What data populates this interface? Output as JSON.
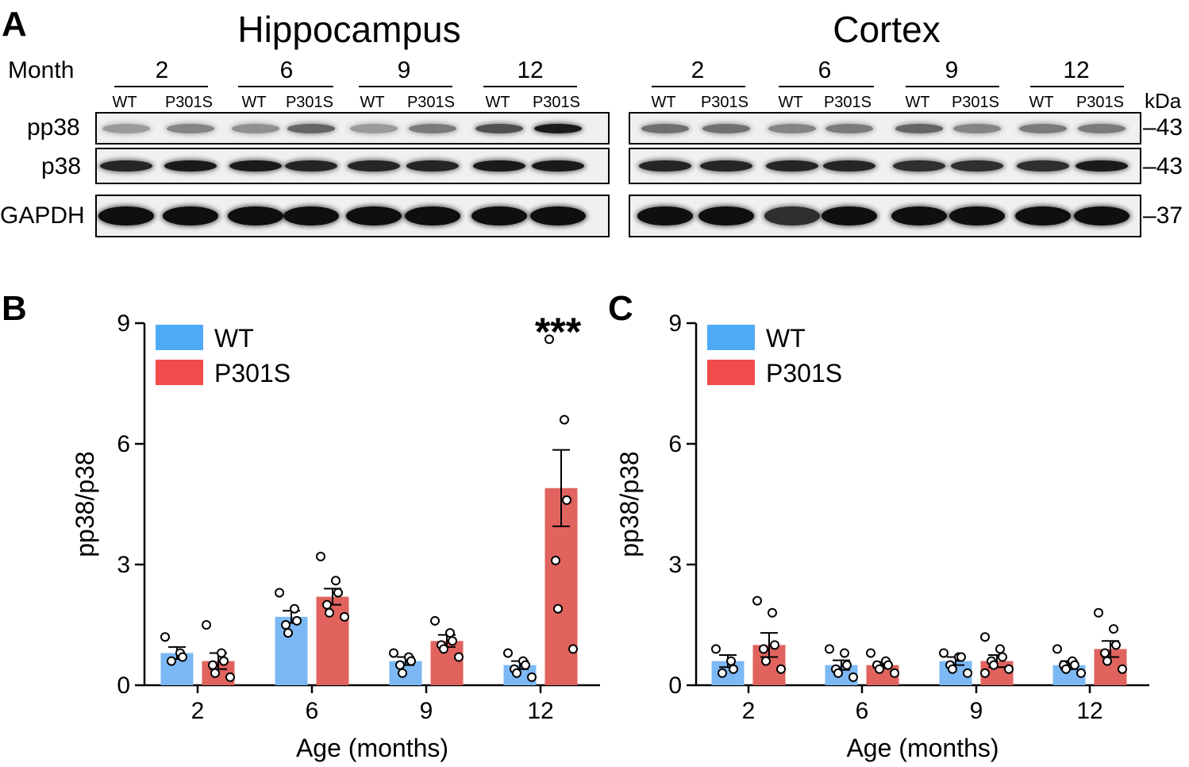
{
  "panel_a": {
    "letter": "A",
    "month_label": "Month",
    "kda_label": "kDa",
    "regions": [
      {
        "title": "Hippocampus",
        "months": [
          "2",
          "6",
          "9",
          "12"
        ]
      },
      {
        "title": "Cortex",
        "months": [
          "2",
          "6",
          "9",
          "12"
        ]
      }
    ],
    "lane_labels": [
      "WT",
      "P301S"
    ],
    "rows": [
      {
        "label": "pp38",
        "kda": "43"
      },
      {
        "label": "p38",
        "kda": "43"
      },
      {
        "label": "GAPDH",
        "kda": "37"
      }
    ]
  },
  "panel_b": {
    "letter": "B"
  },
  "panel_c": {
    "letter": "C"
  },
  "chart_data": [
    {
      "type": "bar",
      "panel": "B",
      "title": "",
      "xlabel": "Age (months)",
      "ylabel": "pp38/p38",
      "ylim": [
        0,
        9
      ],
      "yticks": [
        0,
        3,
        6,
        9
      ],
      "categories": [
        "2",
        "6",
        "9",
        "12"
      ],
      "legend": {
        "position": "top-left",
        "entries": [
          "WT",
          "P301S"
        ]
      },
      "annotation": {
        "text": "***",
        "category": "12"
      },
      "series": [
        {
          "name": "WT",
          "color": "#7cb8f4",
          "legend_color": "#4faaf6",
          "values": [
            0.8,
            1.7,
            0.6,
            0.5
          ],
          "sem": [
            0.15,
            0.15,
            0.1,
            0.1
          ],
          "points": [
            [
              1.2,
              0.8,
              0.7,
              0.6
            ],
            [
              2.3,
              1.9,
              1.6,
              1.5,
              1.3
            ],
            [
              0.8,
              0.7,
              0.6,
              0.5,
              0.3
            ],
            [
              0.8,
              0.6,
              0.5,
              0.4,
              0.3,
              0.2
            ]
          ]
        },
        {
          "name": "P301S",
          "color": "#e0635e",
          "legend_color": "#f24b4b",
          "values": [
            0.6,
            2.2,
            1.1,
            4.9
          ],
          "sem": [
            0.2,
            0.2,
            0.15,
            0.95
          ],
          "points": [
            [
              1.5,
              0.8,
              0.6,
              0.5,
              0.3,
              0.2
            ],
            [
              3.2,
              2.6,
              2.3,
              2.0,
              1.8,
              1.7
            ],
            [
              1.6,
              1.3,
              1.1,
              1.0,
              0.9,
              0.7
            ],
            [
              8.6,
              6.6,
              4.6,
              3.1,
              1.9,
              0.9
            ]
          ]
        }
      ]
    },
    {
      "type": "bar",
      "panel": "C",
      "title": "",
      "xlabel": "Age (months)",
      "ylabel": "pp38/p38",
      "ylim": [
        0,
        9
      ],
      "yticks": [
        0,
        3,
        6,
        9
      ],
      "categories": [
        "2",
        "6",
        "9",
        "12"
      ],
      "legend": {
        "position": "top-left",
        "entries": [
          "WT",
          "P301S"
        ]
      },
      "series": [
        {
          "name": "WT",
          "color": "#7cb8f4",
          "legend_color": "#4faaf6",
          "values": [
            0.6,
            0.5,
            0.6,
            0.5
          ],
          "sem": [
            0.15,
            0.12,
            0.1,
            0.1
          ],
          "points": [
            [
              0.9,
              0.6,
              0.4,
              0.3
            ],
            [
              0.9,
              0.8,
              0.5,
              0.4,
              0.3,
              0.2
            ],
            [
              0.8,
              0.7,
              0.7,
              0.5,
              0.4,
              0.3
            ],
            [
              0.9,
              0.6,
              0.5,
              0.5,
              0.4,
              0.3
            ]
          ]
        },
        {
          "name": "P301S",
          "color": "#e0635e",
          "legend_color": "#f24b4b",
          "values": [
            1.0,
            0.5,
            0.6,
            0.9
          ],
          "sem": [
            0.3,
            0.08,
            0.15,
            0.2
          ],
          "points": [
            [
              2.1,
              1.8,
              1.0,
              0.9,
              0.6,
              0.4
            ],
            [
              0.8,
              0.6,
              0.5,
              0.5,
              0.4,
              0.3
            ],
            [
              1.2,
              0.9,
              0.7,
              0.6,
              0.5,
              0.4,
              0.3
            ],
            [
              1.8,
              1.4,
              1.0,
              0.8,
              0.6,
              0.4
            ]
          ]
        }
      ]
    }
  ]
}
